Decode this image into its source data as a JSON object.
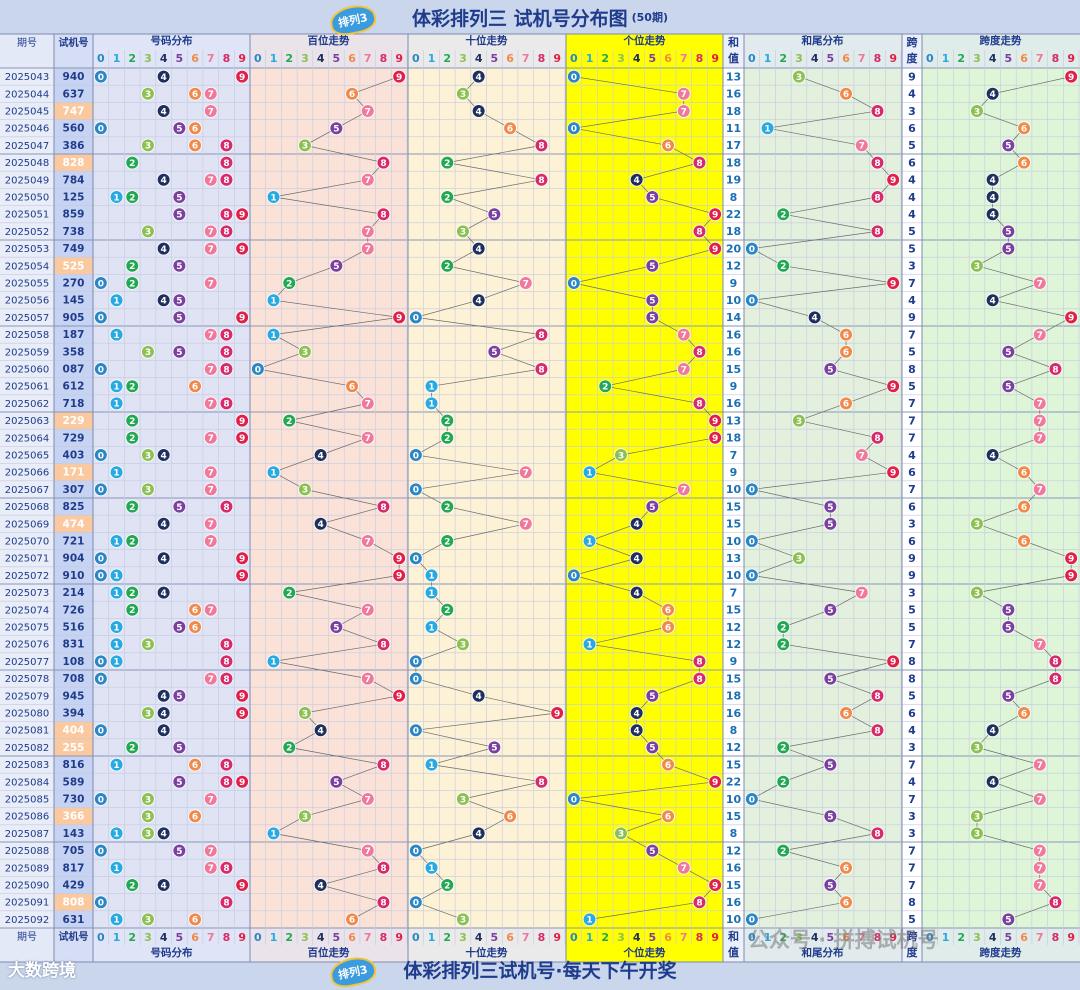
{
  "header": {
    "title": "体彩排列三 试机号分布图",
    "subtitle": "(50期)"
  },
  "footer": {
    "title": "体彩排列三试机号·每天下午开奖"
  },
  "logo_text": "排列3",
  "brand": "大数跨境",
  "watermark": "公众号 · 拼搏试机号",
  "columns": {
    "period": "期号",
    "trial": "试机号",
    "dist": "号码分布",
    "hundreds": "百位走势",
    "tens": "十位走势",
    "units": "个位走势",
    "sum_1": "和",
    "sum_2": "值",
    "sumtail": "和尾分布",
    "span_1": "跨",
    "span_2": "度",
    "span_trend": "跨度走势",
    "digits": [
      "0",
      "1",
      "2",
      "3",
      "4",
      "5",
      "6",
      "7",
      "8",
      "9"
    ]
  },
  "colors": {
    "digit_balls": [
      "#2b86c5",
      "#27a9e1",
      "#22a852",
      "#8cc152",
      "#1e2f5e",
      "#7b3fa0",
      "#f08a4b",
      "#f0789a",
      "#d62a6a",
      "#e0204a"
    ],
    "bg_dist": "#dfe3f4",
    "bg_hundreds": "#fbe2d8",
    "bg_tens": "#fdf1d6",
    "bg_units": "#ffff00",
    "bg_sumtail": "#e3f0dd",
    "bg_span": "#dff5d8",
    "bg_sum": "#ffffff",
    "highlight": "#fbc9a0"
  },
  "chart_data": {
    "type": "table",
    "title": "体彩排列三 试机号分布图",
    "rows": [
      {
        "period": "2025043",
        "trial": "940",
        "sum": 13,
        "span": 9
      },
      {
        "period": "2025044",
        "trial": "637",
        "sum": 16,
        "span": 4
      },
      {
        "period": "2025045",
        "trial": "747",
        "sum": 18,
        "span": 3
      },
      {
        "period": "2025046",
        "trial": "560",
        "sum": 11,
        "span": 6
      },
      {
        "period": "2025047",
        "trial": "386",
        "sum": 17,
        "span": 5
      },
      {
        "period": "2025048",
        "trial": "828",
        "sum": 18,
        "span": 6
      },
      {
        "period": "2025049",
        "trial": "784",
        "sum": 19,
        "span": 4
      },
      {
        "period": "2025050",
        "trial": "125",
        "sum": 8,
        "span": 4
      },
      {
        "period": "2025051",
        "trial": "859",
        "sum": 22,
        "span": 4
      },
      {
        "period": "2025052",
        "trial": "738",
        "sum": 18,
        "span": 5
      },
      {
        "period": "2025053",
        "trial": "749",
        "sum": 20,
        "span": 5
      },
      {
        "period": "2025054",
        "trial": "525",
        "sum": 12,
        "span": 3
      },
      {
        "period": "2025055",
        "trial": "270",
        "sum": 9,
        "span": 7
      },
      {
        "period": "2025056",
        "trial": "145",
        "sum": 10,
        "span": 4
      },
      {
        "period": "2025057",
        "trial": "905",
        "sum": 14,
        "span": 9
      },
      {
        "period": "2025058",
        "trial": "187",
        "sum": 16,
        "span": 7
      },
      {
        "period": "2025059",
        "trial": "358",
        "sum": 16,
        "span": 5
      },
      {
        "period": "2025060",
        "trial": "087",
        "sum": 15,
        "span": 8
      },
      {
        "period": "2025061",
        "trial": "612",
        "sum": 9,
        "span": 5
      },
      {
        "period": "2025062",
        "trial": "718",
        "sum": 16,
        "span": 7
      },
      {
        "period": "2025063",
        "trial": "229",
        "sum": 13,
        "span": 7
      },
      {
        "period": "2025064",
        "trial": "729",
        "sum": 18,
        "span": 7
      },
      {
        "period": "2025065",
        "trial": "403",
        "sum": 7,
        "span": 4
      },
      {
        "period": "2025066",
        "trial": "171",
        "sum": 9,
        "span": 6
      },
      {
        "period": "2025067",
        "trial": "307",
        "sum": 10,
        "span": 7
      },
      {
        "period": "2025068",
        "trial": "825",
        "sum": 15,
        "span": 6
      },
      {
        "period": "2025069",
        "trial": "474",
        "sum": 15,
        "span": 3
      },
      {
        "period": "2025070",
        "trial": "721",
        "sum": 10,
        "span": 6
      },
      {
        "period": "2025071",
        "trial": "904",
        "sum": 13,
        "span": 9
      },
      {
        "period": "2025072",
        "trial": "910",
        "sum": 10,
        "span": 9
      },
      {
        "period": "2025073",
        "trial": "214",
        "sum": 7,
        "span": 3
      },
      {
        "period": "2025074",
        "trial": "726",
        "sum": 15,
        "span": 5
      },
      {
        "period": "2025075",
        "trial": "516",
        "sum": 12,
        "span": 5
      },
      {
        "period": "2025076",
        "trial": "831",
        "sum": 12,
        "span": 7
      },
      {
        "period": "2025077",
        "trial": "108",
        "sum": 9,
        "span": 8
      },
      {
        "period": "2025078",
        "trial": "708",
        "sum": 15,
        "span": 8
      },
      {
        "period": "2025079",
        "trial": "945",
        "sum": 18,
        "span": 5
      },
      {
        "period": "2025080",
        "trial": "394",
        "sum": 16,
        "span": 6
      },
      {
        "period": "2025081",
        "trial": "404",
        "sum": 8,
        "span": 4
      },
      {
        "period": "2025082",
        "trial": "255",
        "sum": 12,
        "span": 3
      },
      {
        "period": "2025083",
        "trial": "816",
        "sum": 15,
        "span": 7
      },
      {
        "period": "2025084",
        "trial": "589",
        "sum": 22,
        "span": 4
      },
      {
        "period": "2025085",
        "trial": "730",
        "sum": 10,
        "span": 7
      },
      {
        "period": "2025086",
        "trial": "366",
        "sum": 15,
        "span": 3
      },
      {
        "period": "2025087",
        "trial": "143",
        "sum": 8,
        "span": 3
      },
      {
        "period": "2025088",
        "trial": "705",
        "sum": 12,
        "span": 7
      },
      {
        "period": "2025089",
        "trial": "817",
        "sum": 16,
        "span": 7
      },
      {
        "period": "2025090",
        "trial": "429",
        "sum": 15,
        "span": 7
      },
      {
        "period": "2025091",
        "trial": "808",
        "sum": 16,
        "span": 8
      },
      {
        "period": "2025092",
        "trial": "631",
        "sum": 10,
        "span": 5
      }
    ]
  }
}
